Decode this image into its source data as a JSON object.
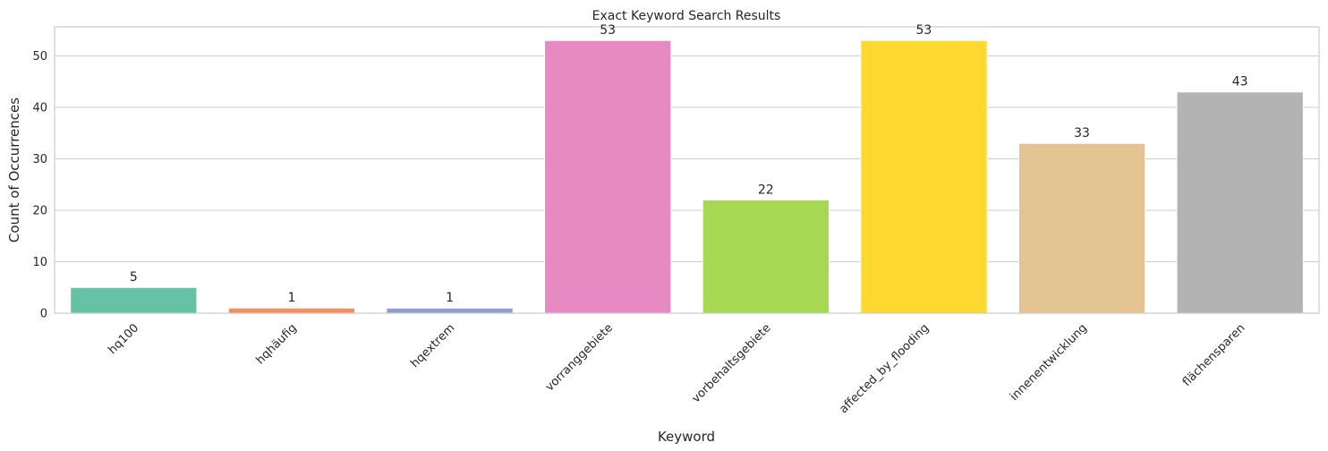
{
  "chart_data": {
    "type": "bar",
    "title": "Exact Keyword Search Results",
    "xlabel": "Keyword",
    "ylabel": "Count of Occurrences",
    "categories": [
      "hq100",
      "hqhäufig",
      "hqextrem",
      "vorranggebiete",
      "vorbehaltsgebiete",
      "affected_by_flooding",
      "innenentwicklung",
      "flächensparen"
    ],
    "values": [
      5,
      1,
      1,
      53,
      22,
      53,
      33,
      43
    ],
    "colors": [
      "#66c2a5",
      "#fc8d62",
      "#8da0cb",
      "#e78ac3",
      "#a6d854",
      "#ffd92f",
      "#e5c494",
      "#b3b3b3"
    ],
    "yticks": [
      0,
      10,
      20,
      30,
      40,
      50
    ],
    "ylim": [
      0,
      55.65
    ],
    "grid": true,
    "legend": "none"
  }
}
